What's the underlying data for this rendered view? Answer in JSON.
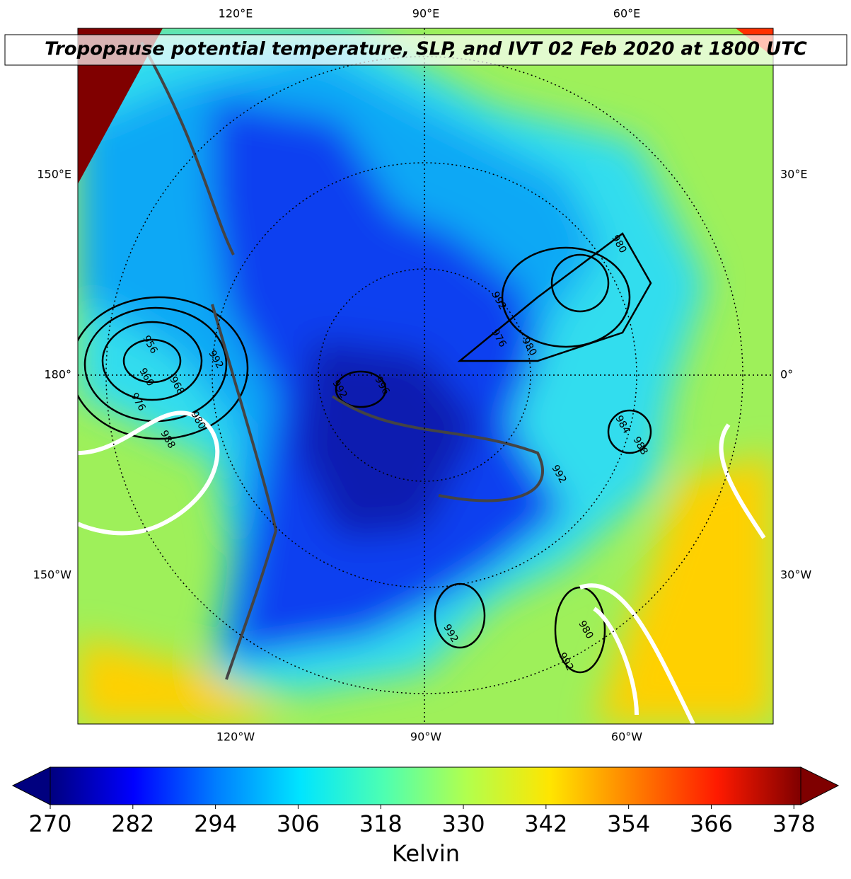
{
  "title": "Tropopause potential temperature, SLP, and IVT 02 Feb 2020 at 1800 UTC",
  "map": {
    "lon_labels_top": [
      "120°E",
      "90°E",
      "60°E"
    ],
    "lon_labels_left": [
      "150°E",
      "180°",
      "150°W"
    ],
    "lon_labels_right": [
      "30°E",
      "0°",
      "30°W"
    ],
    "lon_labels_bottom": [
      "120°W",
      "90°W",
      "60°W"
    ],
    "contour_labels": [
      "956",
      "960",
      "968",
      "976",
      "980",
      "988",
      "992",
      "992",
      "976",
      "980",
      "992",
      "996",
      "984",
      "988",
      "992",
      "992",
      "980",
      "992",
      "980"
    ]
  },
  "colorbar": {
    "label": "Kelvin",
    "lim": [
      270,
      379
    ],
    "ticks": [
      270,
      282,
      294,
      306,
      318,
      330,
      342,
      354,
      366,
      378
    ],
    "colors": [
      "#00007f",
      "#0000ff",
      "#007fff",
      "#00e5ff",
      "#4dffb2",
      "#b2ff4d",
      "#ffe500",
      "#ff7f00",
      "#ff1a00",
      "#7f0000"
    ]
  }
}
